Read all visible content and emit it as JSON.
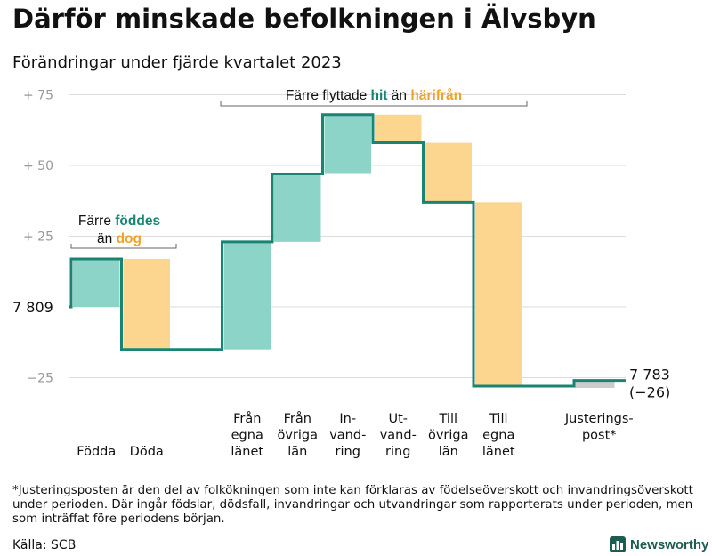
{
  "title": "Därför minskade befolkningen i Älvsbyn",
  "subtitle": "Förändringar under fjärde kvartalet 2023",
  "footnote": "*Justeringsposten är den del av folkökningen som inte kan förklaras av födelseöverskott och invandringsöverskott under perioden. Där ingår födslar, dödsfall, invandringar och utvandringar som rapporterats under perioden, men som inträffat före periodens början.",
  "source": "Källa: SCB",
  "brand": "Newsworthy",
  "colors": {
    "increase": "#8dd4c8",
    "decrease": "#fcd68e",
    "adjustment": "#cccccc",
    "line": "#198474",
    "teal_text": "#198474",
    "orange_text": "#f0a32a",
    "grid": "#dcdcdc"
  },
  "chart_data": {
    "type": "waterfall",
    "start": {
      "label": "7 809",
      "value": 7809
    },
    "end": {
      "label": "7 783",
      "change_label": "(−26)",
      "value": 7783
    },
    "y_ticks": [
      {
        "label": "+  75",
        "offset": 75
      },
      {
        "label": "+  50",
        "offset": 50
      },
      {
        "label": "+  25",
        "offset": 25
      },
      {
        "label": "−25",
        "offset": -25
      }
    ],
    "ylim_offset": [
      -30,
      75
    ],
    "steps": [
      {
        "label": "Födda",
        "change": 17,
        "kind": "increase"
      },
      {
        "label": "Döda",
        "change": -32,
        "kind": "decrease"
      },
      {
        "label": "",
        "change": 0,
        "kind": "gap"
      },
      {
        "label": "Från\negna\nlänet",
        "change": 38,
        "kind": "increase"
      },
      {
        "label": "Från\növriga\nlän",
        "change": 24,
        "kind": "increase"
      },
      {
        "label": "In-\nvand-\nring",
        "change": 21,
        "kind": "increase"
      },
      {
        "label": "Ut-\nvand-\nring",
        "change": -10,
        "kind": "decrease"
      },
      {
        "label": "Till\növriga\nlän",
        "change": -21,
        "kind": "decrease"
      },
      {
        "label": "Till\negna\nlänet",
        "change": -65,
        "kind": "decrease"
      },
      {
        "label": "",
        "change": 0,
        "kind": "gap"
      },
      {
        "label": "Justerings-\npost*",
        "change": 2,
        "kind": "adjustment"
      }
    ],
    "annotations": [
      {
        "parts": [
          {
            "text": "Färre ",
            "style": "plain"
          },
          {
            "text": "föddes",
            "style": "teal"
          }
        ],
        "parts2": [
          {
            "text": "än ",
            "style": "plain"
          },
          {
            "text": "dog",
            "style": "orange"
          }
        ]
      },
      {
        "parts": [
          {
            "text": "Färre flyttade ",
            "style": "plain"
          },
          {
            "text": "hit",
            "style": "teal"
          },
          {
            "text": " än ",
            "style": "plain"
          },
          {
            "text": "härifrån",
            "style": "orange"
          }
        ]
      }
    ]
  }
}
